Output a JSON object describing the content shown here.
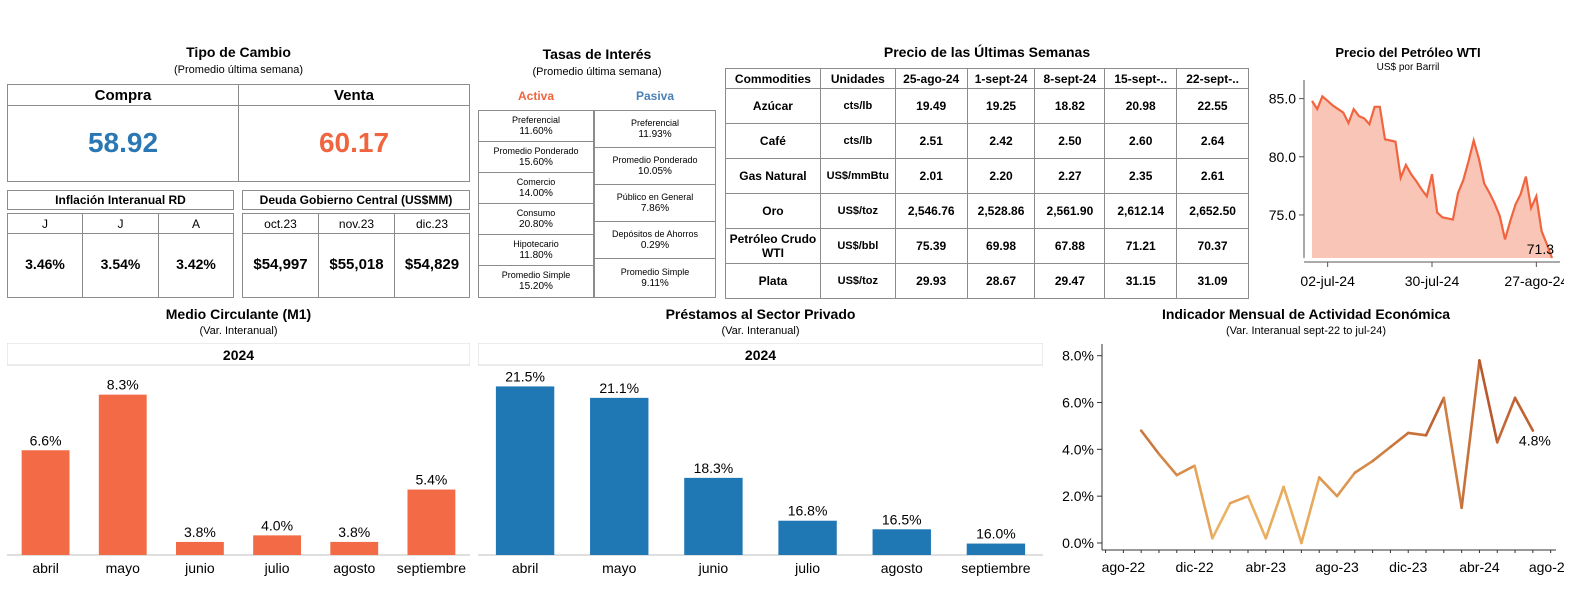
{
  "exchange": {
    "title": "Tipo de Cambio",
    "subtitle": "(Promedio última semana)",
    "buy_label": "Compra",
    "buy_value": "58.92",
    "sell_label": "Venta",
    "sell_value": "60.17",
    "buy_color": "#2a77b4",
    "sell_color": "#f0653f"
  },
  "inflation": {
    "title": "Inflación Interanual RD",
    "cols": [
      {
        "label": "J",
        "value": "3.46%"
      },
      {
        "label": "J",
        "value": "3.54%"
      },
      {
        "label": "A",
        "value": "3.42%"
      }
    ]
  },
  "debt": {
    "title": "Deuda Gobierno Central (US$MM)",
    "cols": [
      {
        "label": "oct.23",
        "value": "$54,997"
      },
      {
        "label": "nov.23",
        "value": "$55,018"
      },
      {
        "label": "dic.23",
        "value": "$54,829"
      }
    ]
  },
  "rates": {
    "title": "Tasas de Interés",
    "subtitle": "(Promedio última semana)",
    "activa_label": "Activa",
    "pasiva_label": "Pasiva",
    "activa_color": "#f0653f",
    "pasiva_color": "#4a80b7",
    "activa": [
      {
        "name": "Preferencial",
        "value": "11.60%"
      },
      {
        "name": "Promedio Ponderado",
        "value": "15.60%"
      },
      {
        "name": "Comercio",
        "value": "14.00%"
      },
      {
        "name": "Consumo",
        "value": "20.80%"
      },
      {
        "name": "Hipotecario",
        "value": "11.80%"
      },
      {
        "name": "Promedio Simple",
        "value": "15.20%"
      }
    ],
    "pasiva": [
      {
        "name": "Preferencial",
        "value": "11.93%"
      },
      {
        "name": "Promedio Ponderado",
        "value": "10.05%"
      },
      {
        "name": "Público en General",
        "value": "7.86%"
      },
      {
        "name": "Depósitos de Ahorros",
        "value": "0.29%"
      },
      {
        "name": "Promedio Simple",
        "value": "9.11%"
      }
    ]
  },
  "commodities": {
    "title": "Precio de las Últimas Semanas",
    "headers": [
      "Commodities",
      "Unidades",
      "25-ago-24",
      "1-sept-24",
      "8-sept-24",
      "15-sept-..",
      "22-sept-.."
    ],
    "rows": [
      {
        "name": "Azúcar",
        "unit": "cts/lb",
        "values": [
          "19.49",
          "19.25",
          "18.82",
          "20.98",
          "22.55"
        ]
      },
      {
        "name": "Café",
        "unit": "cts/lb",
        "values": [
          "2.51",
          "2.42",
          "2.50",
          "2.60",
          "2.64"
        ]
      },
      {
        "name": "Gas Natural",
        "unit": "US$/mmBtu",
        "values": [
          "2.01",
          "2.20",
          "2.27",
          "2.35",
          "2.61"
        ]
      },
      {
        "name": "Oro",
        "unit": "US$/toz",
        "values": [
          "2,546.76",
          "2,528.86",
          "2,561.90",
          "2,612.14",
          "2,652.50"
        ]
      },
      {
        "name": "Petróleo Crudo WTI",
        "unit": "US$/bbl",
        "values": [
          "75.39",
          "69.98",
          "67.88",
          "71.21",
          "70.37"
        ]
      },
      {
        "name": "Plata",
        "unit": "US$/toz",
        "values": [
          "29.93",
          "28.67",
          "29.47",
          "31.15",
          "31.09"
        ]
      }
    ]
  },
  "chart_data": [
    {
      "id": "wti",
      "type": "area",
      "title": "Precio del Petróleo WTI",
      "subtitle": "US$ por Barril",
      "ylim": [
        71.3,
        86.6
      ],
      "yticks": [
        75.0,
        80.0,
        85.0
      ],
      "ytick_labels": [
        "75.0",
        "80.0",
        "85.0"
      ],
      "xticks": [
        {
          "index": 3,
          "label": "02-jul-24"
        },
        {
          "index": 23,
          "label": "30-jul-24"
        },
        {
          "index": 43,
          "label": "27-ago-24"
        }
      ],
      "last_label": "71.3",
      "color": "#f0653f",
      "fill": "#f9c5b6",
      "values": [
        84.8,
        84.1,
        85.2,
        84.8,
        84.4,
        84.1,
        83.8,
        82.9,
        84.1,
        83.5,
        83.3,
        82.8,
        84.3,
        84.3,
        81.5,
        81.4,
        81.3,
        78.2,
        79.3,
        78.5,
        77.9,
        77.2,
        76.6,
        78.5,
        75.2,
        74.8,
        74.7,
        74.6,
        76.9,
        78.0,
        79.6,
        81.4,
        79.8,
        77.7,
        76.9,
        76.0,
        74.9,
        72.9,
        74.5,
        75.9,
        76.8,
        78.3,
        75.6,
        76.6,
        73.6,
        72.5,
        71.3
      ]
    },
    {
      "id": "m1",
      "type": "bar",
      "title": "Medio Circulante (M1)",
      "subtitle": "(Var. Interanual)",
      "header": "2024",
      "categories": [
        "abril",
        "mayo",
        "junio",
        "julio",
        "agosto",
        "septiembre"
      ],
      "values": [
        6.6,
        8.3,
        3.8,
        4.0,
        3.8,
        5.4
      ],
      "labels": [
        "6.6%",
        "8.3%",
        "3.8%",
        "4.0%",
        "3.8%",
        "5.4%"
      ],
      "ylim": [
        3.4,
        8.9
      ],
      "color": "#f26a46"
    },
    {
      "id": "loans",
      "type": "bar",
      "title": "Préstamos al Sector Privado",
      "subtitle": "(Var. Interanual)",
      "header": "2024",
      "categories": [
        "abril",
        "mayo",
        "junio",
        "julio",
        "agosto",
        "septiembre"
      ],
      "values": [
        21.5,
        21.1,
        18.3,
        16.8,
        16.5,
        16.0
      ],
      "labels": [
        "21.5%",
        "21.1%",
        "18.3%",
        "16.8%",
        "16.5%",
        "16.0%"
      ],
      "ylim": [
        15.6,
        21.9
      ],
      "color": "#1f77b4"
    },
    {
      "id": "imae",
      "type": "line",
      "title": "Indicador Mensual de Actividad Económica",
      "subtitle": "(Var. Interanual sept-22 to jul-24)",
      "ylim": [
        -0.3,
        8.5
      ],
      "yticks": [
        0,
        2,
        4,
        6,
        8
      ],
      "ytick_labels": [
        "0.0%",
        "2.0%",
        "4.0%",
        "6.0%",
        "8.0%"
      ],
      "x_labels": [
        {
          "index": 1,
          "label": "ago-22"
        },
        {
          "index": 5,
          "label": "dic-22"
        },
        {
          "index": 9,
          "label": "abr-23"
        },
        {
          "index": 13,
          "label": "ago-23"
        },
        {
          "index": 17,
          "label": "dic-23"
        },
        {
          "index": 21,
          "label": "abr-24"
        },
        {
          "index": 25,
          "label": "ago-24"
        }
      ],
      "x_count": 26,
      "first_index": 2,
      "values": [
        4.8,
        3.8,
        2.9,
        3.3,
        0.2,
        1.7,
        2.0,
        0.2,
        2.4,
        0.0,
        2.8,
        2.0,
        3.0,
        3.5,
        4.1,
        4.7,
        4.6,
        6.2,
        1.5,
        7.8,
        4.3,
        6.2,
        4.8
      ],
      "last_label": "4.8%",
      "color_low": "#f5c36b",
      "color_high": "#a8391a"
    }
  ]
}
